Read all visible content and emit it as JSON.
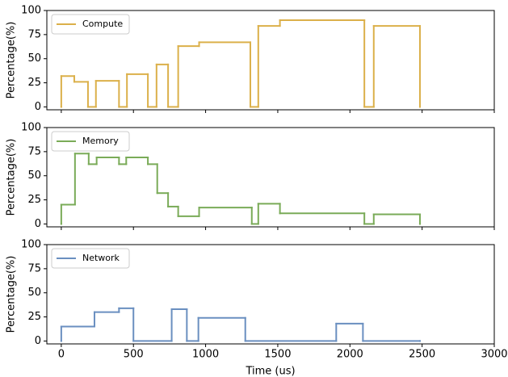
{
  "chart_data": [
    {
      "type": "line",
      "step": "post",
      "ylabel": "Percentage(%)",
      "legend": "upper left",
      "xlim": [
        -100,
        3000
      ],
      "xticks": [
        0,
        500,
        1000,
        1500,
        2000,
        2500,
        3000
      ],
      "ylim": [
        -3,
        100
      ],
      "yticks": [
        0,
        25,
        50,
        75,
        100
      ],
      "series": [
        {
          "name": "Compute",
          "color": "#dbb04a",
          "x": [
            0,
            0,
            90,
            185,
            240,
            400,
            455,
            600,
            660,
            740,
            810,
            955,
            1310,
            1365,
            1515,
            2100,
            2165,
            2485
          ],
          "values": [
            0,
            32,
            26,
            0,
            27,
            0,
            34,
            0,
            44,
            0,
            63,
            67,
            0,
            84,
            90,
            0,
            84,
            0
          ]
        }
      ]
    },
    {
      "type": "line",
      "step": "post",
      "ylabel": "Percentage(%)",
      "legend": "upper left",
      "xlim": [
        -100,
        3000
      ],
      "xticks": [
        0,
        500,
        1000,
        1500,
        2000,
        2500,
        3000
      ],
      "ylim": [
        -3,
        100
      ],
      "yticks": [
        0,
        25,
        50,
        75,
        100
      ],
      "series": [
        {
          "name": "Memory",
          "color": "#7aab58",
          "x": [
            0,
            0,
            95,
            190,
            245,
            400,
            450,
            600,
            665,
            740,
            810,
            955,
            1320,
            1365,
            1515,
            2100,
            2165,
            2485
          ],
          "values": [
            0,
            20,
            73,
            62,
            69,
            62,
            69,
            62,
            32,
            18,
            8,
            17,
            0,
            21,
            11,
            0,
            10,
            0
          ]
        }
      ]
    },
    {
      "type": "line",
      "step": "post",
      "ylabel": "Percentage(%)",
      "legend": "upper left",
      "xlabel": "Time (us)",
      "xlim": [
        -100,
        3000
      ],
      "xticks": [
        0,
        500,
        1000,
        1500,
        2000,
        2500,
        3000
      ],
      "ylim": [
        -3,
        100
      ],
      "yticks": [
        0,
        25,
        50,
        75,
        100
      ],
      "series": [
        {
          "name": "Network",
          "color": "#6a8fc0",
          "x": [
            0,
            0,
            230,
            400,
            500,
            765,
            870,
            950,
            1275,
            1905,
            2090,
            2485
          ],
          "values": [
            0,
            15,
            30,
            34,
            0,
            33,
            0,
            24,
            0,
            18,
            0,
            0
          ]
        }
      ]
    }
  ]
}
